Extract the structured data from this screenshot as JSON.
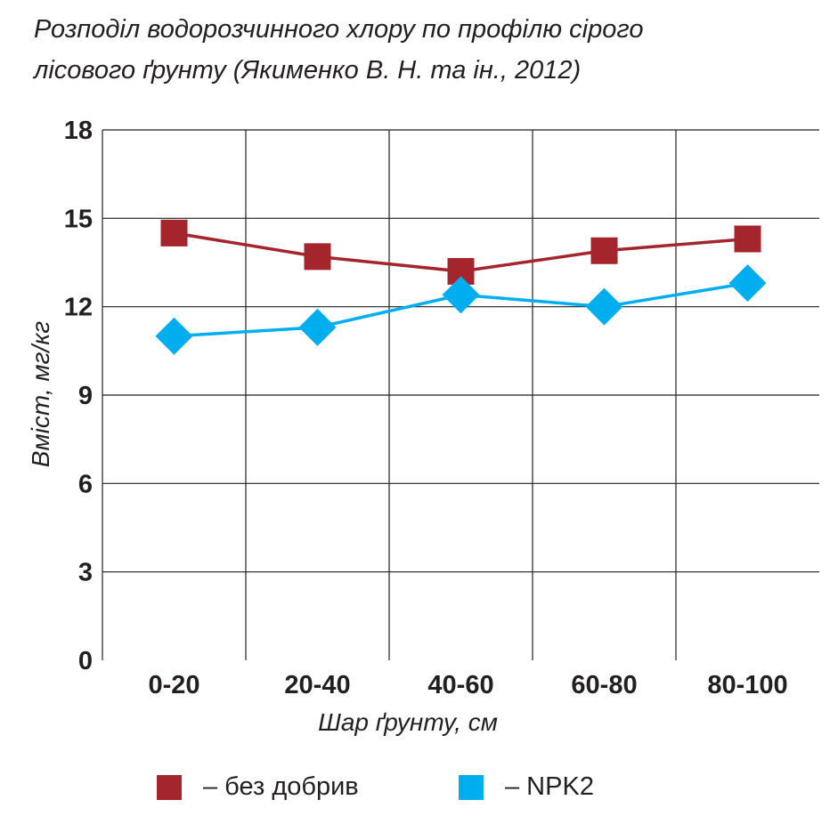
{
  "chart_data": {
    "type": "line",
    "title": "Розподіл водорозчинного хлору по профілю сірого лісового ґрунту (Якименко В. Н. та ін., 2012)",
    "title_lines": [
      "Розподіл водорозчинного хлору по профілю сірого",
      "лісового ґрунту (Якименко В. Н. та ін., 2012)"
    ],
    "xlabel": "Шар ґрунту, см",
    "ylabel": "Вміст, мг/кг",
    "categories": [
      "0-20",
      "20-40",
      "40-60",
      "60-80",
      "80-100"
    ],
    "ylim": [
      0,
      18
    ],
    "yticks": [
      0,
      3,
      6,
      9,
      12,
      15,
      18
    ],
    "grid": true,
    "legend_position": "bottom",
    "series": [
      {
        "name": "без добрив",
        "legend_text": "– без добрив",
        "color": "#a4262c",
        "marker": "square",
        "values": [
          14.5,
          13.7,
          13.2,
          13.9,
          14.3
        ]
      },
      {
        "name": "NPK2",
        "legend_text": "– NPK2",
        "color": "#00aeef",
        "marker": "diamond",
        "values": [
          11.0,
          11.3,
          12.4,
          12.0,
          12.8
        ]
      }
    ]
  }
}
